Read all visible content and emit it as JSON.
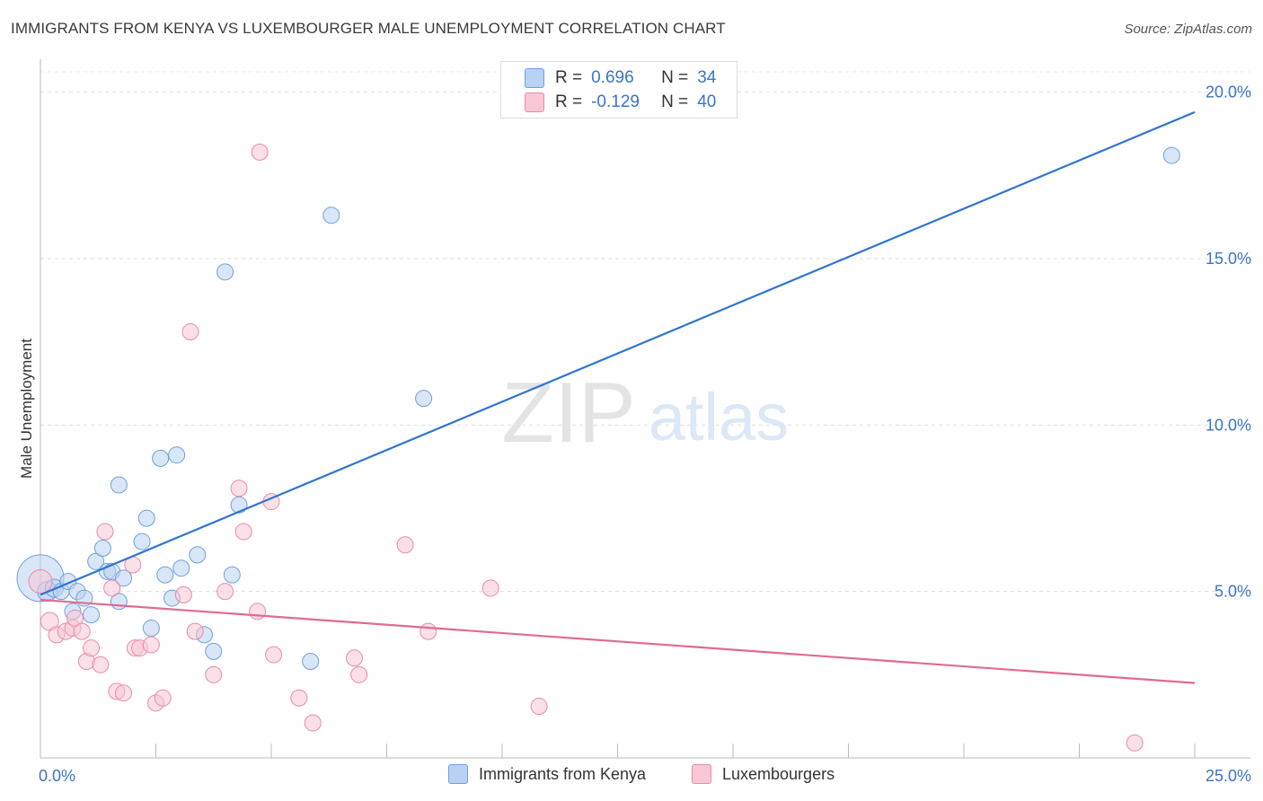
{
  "header": {
    "title": "IMMIGRANTS FROM KENYA VS LUXEMBOURGER MALE UNEMPLOYMENT CORRELATION CHART",
    "source": "Source: ZipAtlas.com"
  },
  "watermark": {
    "zip": "ZIP",
    "atlas": "atlas"
  },
  "legend_top": {
    "rows": [
      {
        "r_label": "R =",
        "r_value": "0.696",
        "n_label": "N =",
        "n_value": "34"
      },
      {
        "r_label": "R =",
        "r_value": "-0.129",
        "n_label": "N =",
        "n_value": "40"
      }
    ]
  },
  "chart_data": {
    "type": "scatter",
    "title": "IMMIGRANTS FROM KENYA VS LUXEMBOURGER MALE UNEMPLOYMENT CORRELATION CHART",
    "xlabel": "",
    "ylabel": "Male Unemployment",
    "xlim": [
      0,
      25
    ],
    "ylim": [
      0,
      20.8
    ],
    "x_tick_labels": [
      "0.0%",
      "25.0%"
    ],
    "y_ticks": [
      5,
      10,
      15,
      20
    ],
    "y_tick_labels": [
      "5.0%",
      "10.0%",
      "15.0%",
      "20.0%"
    ],
    "grid": true,
    "legend_position": "bottom",
    "series": [
      {
        "name": "Immigrants from Kenya",
        "color": "#6f9fdc",
        "fill": "#b9d2f2",
        "line_color": "#2f74d0",
        "R": 0.696,
        "N": 34,
        "trend": {
          "x": [
            0,
            25
          ],
          "y": [
            4.9,
            19.4
          ]
        },
        "points": [
          [
            0.0,
            5.4,
            26
          ],
          [
            0.15,
            5.0,
            11
          ],
          [
            0.3,
            5.1,
            10
          ],
          [
            0.45,
            5.0,
            9
          ],
          [
            0.6,
            5.3,
            9
          ],
          [
            0.8,
            5.0,
            9
          ],
          [
            0.95,
            4.8,
            9
          ],
          [
            0.7,
            4.4,
            9
          ],
          [
            1.1,
            4.3,
            9
          ],
          [
            1.2,
            5.9,
            9
          ],
          [
            1.35,
            6.3,
            9
          ],
          [
            1.45,
            5.6,
            9
          ],
          [
            1.55,
            5.6,
            9
          ],
          [
            1.7,
            4.7,
            9
          ],
          [
            1.8,
            5.4,
            9
          ],
          [
            1.7,
            8.2,
            9
          ],
          [
            2.2,
            6.5,
            9
          ],
          [
            2.3,
            7.2,
            9
          ],
          [
            2.4,
            3.9,
            9
          ],
          [
            2.6,
            9.0,
            9
          ],
          [
            2.7,
            5.5,
            9
          ],
          [
            2.85,
            4.8,
            9
          ],
          [
            2.95,
            9.1,
            9
          ],
          [
            3.05,
            5.7,
            9
          ],
          [
            3.4,
            6.1,
            9
          ],
          [
            3.55,
            3.7,
            9
          ],
          [
            3.75,
            3.2,
            9
          ],
          [
            4.0,
            14.6,
            9
          ],
          [
            4.15,
            5.5,
            9
          ],
          [
            4.3,
            7.6,
            9
          ],
          [
            5.85,
            2.9,
            9
          ],
          [
            6.3,
            16.3,
            9
          ],
          [
            8.3,
            10.8,
            9
          ],
          [
            24.5,
            18.1,
            9
          ]
        ]
      },
      {
        "name": "Luxembourgers",
        "color": "#e98aa8",
        "fill": "#f8c6d5",
        "line_color": "#e06a93",
        "R": -0.129,
        "N": 40,
        "trend": {
          "x": [
            0,
            25
          ],
          "y": [
            4.75,
            2.25
          ]
        },
        "points": [
          [
            0.0,
            5.3,
            13
          ],
          [
            0.2,
            4.1,
            10
          ],
          [
            0.35,
            3.7,
            9
          ],
          [
            0.55,
            3.8,
            9
          ],
          [
            0.7,
            3.9,
            9
          ],
          [
            0.75,
            4.2,
            9
          ],
          [
            0.9,
            3.8,
            9
          ],
          [
            1.0,
            2.9,
            9
          ],
          [
            1.1,
            3.3,
            9
          ],
          [
            1.3,
            2.8,
            9
          ],
          [
            1.4,
            6.8,
            9
          ],
          [
            1.55,
            5.1,
            9
          ],
          [
            1.65,
            2.0,
            9
          ],
          [
            1.8,
            1.95,
            9
          ],
          [
            2.0,
            5.8,
            9
          ],
          [
            2.05,
            3.3,
            9
          ],
          [
            2.15,
            3.3,
            9
          ],
          [
            2.4,
            3.4,
            9
          ],
          [
            2.5,
            1.65,
            9
          ],
          [
            2.65,
            1.8,
            9
          ],
          [
            3.1,
            4.9,
            9
          ],
          [
            3.25,
            12.8,
            9
          ],
          [
            3.35,
            3.8,
            9
          ],
          [
            3.75,
            2.5,
            9
          ],
          [
            4.0,
            5.0,
            9
          ],
          [
            4.3,
            8.1,
            9
          ],
          [
            4.4,
            6.8,
            9
          ],
          [
            4.7,
            4.4,
            9
          ],
          [
            4.75,
            18.2,
            9
          ],
          [
            5.0,
            7.7,
            9
          ],
          [
            5.05,
            3.1,
            9
          ],
          [
            5.6,
            1.8,
            9
          ],
          [
            5.9,
            1.05,
            9
          ],
          [
            6.8,
            3.0,
            9
          ],
          [
            6.9,
            2.5,
            9
          ],
          [
            7.9,
            6.4,
            9
          ],
          [
            8.4,
            3.8,
            9
          ],
          [
            9.75,
            5.1,
            9
          ],
          [
            10.8,
            1.55,
            9
          ],
          [
            23.7,
            0.45,
            9
          ]
        ]
      }
    ]
  }
}
